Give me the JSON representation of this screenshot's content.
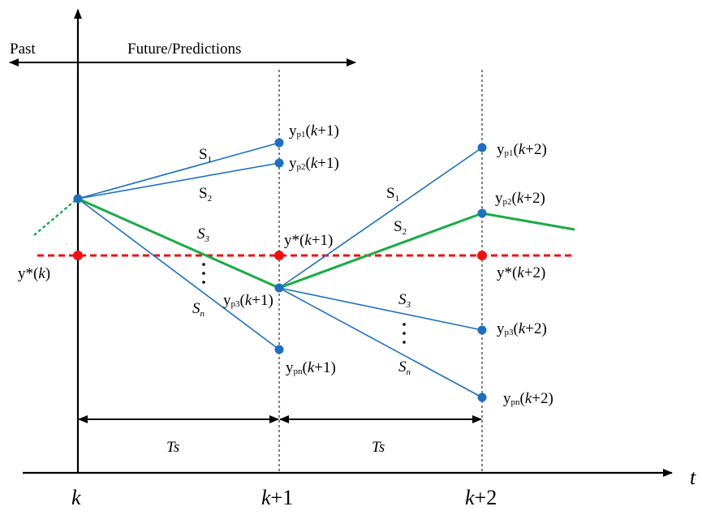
{
  "header": {
    "past": "Past",
    "future": "Future/Predictions"
  },
  "axis": {
    "t": "t",
    "ticks": [
      {
        "pre": "k",
        "post": ""
      },
      {
        "pre": "k",
        "post": "+1"
      },
      {
        "pre": "k",
        "post": "+2"
      }
    ]
  },
  "intervals": [
    "Ts",
    "Ts"
  ],
  "reference_labels": [
    {
      "text": "y*(",
      "var": "k",
      "post": ")"
    },
    {
      "text": "y*(",
      "var": "k",
      "post": "+1)"
    },
    {
      "text": "y*(",
      "var": "k",
      "post": "+2)"
    }
  ],
  "prediction_labels": {
    "step1": [
      {
        "sub": "p1",
        "post": "+1)"
      },
      {
        "sub": "p2",
        "post": "+1)"
      },
      {
        "sub": "p3",
        "post": "+1)"
      },
      {
        "sub": "pn",
        "post": "+1)"
      }
    ],
    "step2": [
      {
        "sub": "p1",
        "post": "+2)"
      },
      {
        "sub": "p2",
        "post": "+2)"
      },
      {
        "sub": "p3",
        "post": "+2)"
      },
      {
        "sub": "pn",
        "post": "+2)"
      }
    ]
  },
  "state_labels": {
    "step1": [
      {
        "main": "S",
        "sub": "1"
      },
      {
        "main": "S",
        "sub": "2"
      },
      {
        "main": "S",
        "sub": "3"
      },
      {
        "main": "S",
        "sub": "n"
      }
    ],
    "step2": [
      {
        "main": "S",
        "sub": "1"
      },
      {
        "main": "S",
        "sub": "2"
      },
      {
        "main": "S",
        "sub": "3"
      },
      {
        "main": "S",
        "sub": "n"
      }
    ]
  },
  "colors": {
    "prediction_line": "#1f6fbf",
    "optimal_path": "#1aab44",
    "reference": "#ee1111",
    "point": "#1f6fbf",
    "axis": "#000000"
  }
}
